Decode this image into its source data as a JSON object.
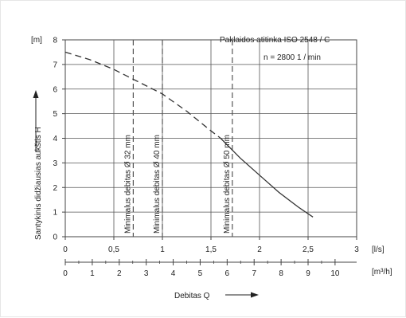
{
  "chart_data": {
    "type": "line",
    "title": "Paklaidos atitinka ISO 2548 / C",
    "speed_note": "n = 2800  1 / min",
    "ylabel": "Santykinis didžiausias aukštis  H",
    "y_unit": "[m]",
    "xlabel": "Debitas Q",
    "x_unit_ls": "[l/s]",
    "x_unit_m3h": "[m³/h]",
    "ylim": [
      0,
      8
    ],
    "xlim": [
      0,
      3
    ],
    "y_ticks": [
      "0",
      "1",
      "2",
      "3",
      "4",
      "5",
      "6",
      "7",
      "8"
    ],
    "x_ticks_ls": [
      "0",
      "0,5",
      "1",
      "1,5",
      "2",
      "2,5",
      "3"
    ],
    "x_ticks_m3h": [
      "0",
      "1",
      "2",
      "3",
      "4",
      "5",
      "6",
      "7",
      "8",
      "9",
      "10"
    ],
    "grid": true,
    "series": [
      {
        "style": "dashed",
        "x": [
          0,
          0.25,
          0.5,
          0.75,
          1.0,
          1.25,
          1.5,
          1.6
        ],
        "y": [
          7.5,
          7.2,
          6.8,
          6.3,
          5.8,
          5.1,
          4.3,
          4.0
        ]
      },
      {
        "style": "solid",
        "x": [
          1.6,
          1.8,
          2.0,
          2.2,
          2.4,
          2.55
        ],
        "y": [
          4.0,
          3.2,
          2.5,
          1.8,
          1.2,
          0.8
        ]
      }
    ],
    "min_flow_lines": [
      {
        "x": 0.7,
        "label": "Minimalus debitas Ø 32 mm"
      },
      {
        "x": 1.0,
        "label": "Minimalus debitas Ø 40 mm"
      },
      {
        "x": 1.72,
        "label": "Minimalus debitas Ø 50 mm"
      }
    ]
  }
}
